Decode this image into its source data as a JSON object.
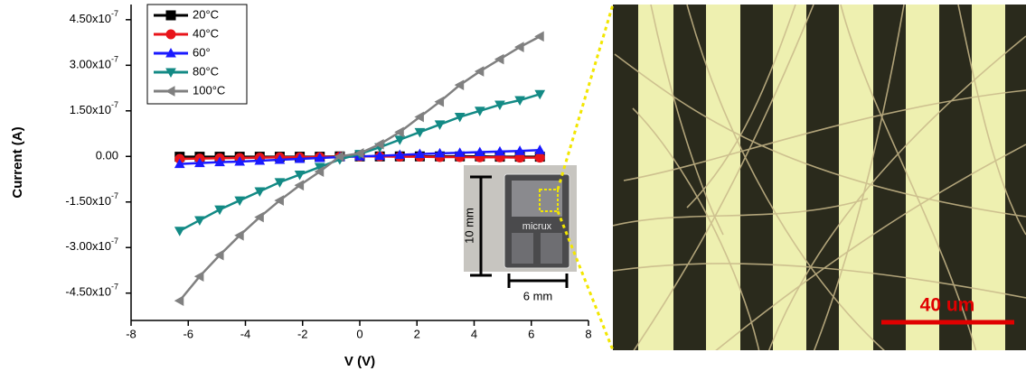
{
  "chart_data": {
    "type": "line",
    "x_label": "V (V)",
    "y_label": "Current (A)",
    "x": [
      -6.3,
      -5.6,
      -4.9,
      -4.2,
      -3.5,
      -2.8,
      -2.1,
      -1.4,
      -0.7,
      0,
      0.7,
      1.4,
      2.1,
      2.8,
      3.5,
      4.2,
      4.9,
      5.6,
      6.3
    ],
    "xlim": [
      -8,
      8
    ],
    "xticks": [
      -8,
      -6,
      -4,
      -2,
      0,
      2,
      4,
      6,
      8
    ],
    "ylim": [
      -5.4e-07,
      5e-07
    ],
    "yticks": [
      {
        "value": -4.5e-07,
        "label": "-4.50x10",
        "exponent": "-7"
      },
      {
        "value": -3e-07,
        "label": "-3.00x10",
        "exponent": "-7"
      },
      {
        "value": -1.5e-07,
        "label": "-1.50x10",
        "exponent": "-7"
      },
      {
        "value": 0,
        "label": "0.00"
      },
      {
        "value": 1.5e-07,
        "label": "1.50x10",
        "exponent": "-7"
      },
      {
        "value": 3e-07,
        "label": "3.00x10",
        "exponent": "-7"
      },
      {
        "value": 4.5e-07,
        "label": "4.50x10",
        "exponent": "-7"
      }
    ],
    "legend": "upper left",
    "series": [
      {
        "name": "20°C",
        "color": "#000000",
        "marker": "square",
        "values": [
          -1e-09,
          -1e-09,
          -1e-09,
          -1e-09,
          -1e-09,
          -1e-09,
          -1e-09,
          -1e-09,
          0,
          0,
          0,
          0,
          0,
          0,
          0,
          0,
          -1e-09,
          -1e-09,
          -1e-09
        ]
      },
      {
        "name": "40°C",
        "color": "#e8141a",
        "marker": "circle",
        "values": [
          -8e-09,
          -7e-09,
          -6e-09,
          -5e-09,
          -4e-09,
          -3e-09,
          -3e-09,
          -2e-09,
          -1e-09,
          0,
          0,
          -1e-09,
          -1e-09,
          -2e-09,
          -2e-09,
          -3e-09,
          -3e-09,
          -4e-09,
          -4e-09
        ]
      },
      {
        "name": "60°",
        "color": "#1a1aff",
        "marker": "triangle-up",
        "values": [
          -2.5e-08,
          -2.2e-08,
          -1.9e-08,
          -1.7e-08,
          -1.4e-08,
          -1.1e-08,
          -8e-09,
          -5e-09,
          -2e-09,
          0,
          2e-09,
          5e-09,
          8e-09,
          1e-08,
          1.2e-08,
          1.4e-08,
          1.6e-08,
          1.8e-08,
          2.1e-08
        ]
      },
      {
        "name": "80°C",
        "color": "#138a85",
        "marker": "triangle-down",
        "values": [
          -2.45e-07,
          -2.1e-07,
          -1.75e-07,
          -1.45e-07,
          -1.15e-07,
          -8.5e-08,
          -6e-08,
          -3.5e-08,
          -1e-08,
          8e-09,
          3e-08,
          5.5e-08,
          8e-08,
          1.05e-07,
          1.3e-07,
          1.5e-07,
          1.7e-07,
          1.85e-07,
          2.05e-07
        ]
      },
      {
        "name": "100°C",
        "color": "#808080",
        "marker": "triangle-left",
        "values": [
          -4.75e-07,
          -3.95e-07,
          -3.25e-07,
          -2.6e-07,
          -2e-07,
          -1.45e-07,
          -9.5e-08,
          -5e-08,
          0,
          1e-08,
          4e-08,
          8e-08,
          1.3e-07,
          1.8e-07,
          2.35e-07,
          2.8e-07,
          3.2e-07,
          3.6e-07,
          3.95e-07
        ]
      }
    ]
  },
  "inset": {
    "height_label": "10 mm",
    "width_label": "6 mm",
    "chip_brand": "micrux"
  },
  "micrograph": {
    "scale_label": "40 um"
  }
}
